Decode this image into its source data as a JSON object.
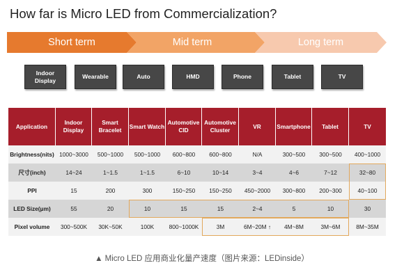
{
  "title": "How far is Micro LED from Commercialization?",
  "phases": [
    "Short term",
    "Mid term",
    "Long term"
  ],
  "colors": {
    "phase_1": "#e67a2e",
    "phase_2": "#f2a466",
    "phase_3": "#f7c9ae",
    "header": "#a61e2b",
    "highlight_border": "#e2a85c"
  },
  "categories": [
    "Indoor Display",
    "Wearable",
    "Auto",
    "HMD",
    "Phone",
    "Tablet",
    "TV"
  ],
  "table": {
    "header": [
      "Application",
      "Indoor Display",
      "Smart Bracelet",
      "Smart Watch",
      "Automotive CID",
      "Automotive Cluster",
      "VR",
      "Smartphone",
      "Tablet",
      "TV"
    ],
    "rows": [
      [
        "Brightness(nits)",
        "1000~3000",
        "500~1000",
        "500~1000",
        "600~800",
        "600~800",
        "N/A",
        "300~500",
        "300~500",
        "400~1000"
      ],
      [
        "尺寸(inch)",
        "14~24",
        "1~1.5",
        "1~1.5",
        "6~10",
        "10~14",
        "3~4",
        "4~6",
        "7~12",
        "32~80"
      ],
      [
        "PPI",
        "15",
        "200",
        "300",
        "150~250",
        "150~250",
        "450~2000",
        "300~800",
        "200~300",
        "40~100"
      ],
      [
        "LED Size(μm)",
        "55",
        "20",
        "10",
        "15",
        "15",
        "2~4",
        "5",
        "10",
        "30"
      ],
      [
        "Pixel volume",
        "300~500K",
        "30K~50K",
        "100K",
        "800~1000K",
        "3M",
        "6M~20M ↑",
        "4M~8M",
        "3M~6M",
        "8M~35M"
      ]
    ]
  },
  "caption": "▲ Micro LED 应用商业化量产速度（图片来源：LEDinside）"
}
